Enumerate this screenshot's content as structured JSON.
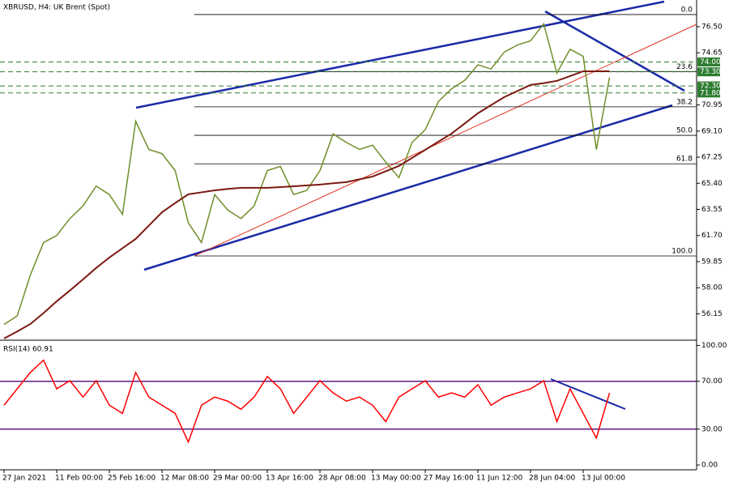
{
  "chart_data": [
    {
      "type": "line",
      "title": "XBRUSD, H4:  UK Brent (Spot)",
      "categories": [
        "27 Jan 2021",
        null,
        null,
        null,
        "11 Feb 00:00",
        null,
        null,
        null,
        "25 Feb 16:00",
        null,
        null,
        null,
        "12 Mar 08:00",
        null,
        null,
        null,
        "29 Mar 00:00",
        null,
        null,
        null,
        "13 Apr 16:00",
        null,
        null,
        null,
        "28 Apr 08:00",
        null,
        null,
        null,
        "13 May 00:00",
        null,
        null,
        null,
        "27 May 16:00",
        null,
        null,
        null,
        "11 Jun 12:00",
        null,
        null,
        null,
        "28 Jun 04:00",
        null,
        null,
        null,
        "13 Jul 00:00",
        null,
        null
      ],
      "series": [
        {
          "color": "#6f8f2a",
          "values": [
            55.4,
            56,
            58.9,
            61.2,
            61.7,
            62.9,
            63.8,
            65.2,
            64.6,
            63.2,
            69.8,
            67.8,
            67.5,
            66.3,
            62.6,
            61.2,
            64.6,
            63.5,
            62.9,
            63.8,
            66.3,
            66.6,
            64.6,
            64.9,
            66.3,
            68.9,
            68.3,
            67.8,
            68.1,
            66.9,
            65.8,
            68.3,
            69.2,
            71.2,
            72.1,
            72.7,
            73.8,
            73.5,
            74.7,
            75.2,
            75.5,
            76.7,
            73.2,
            74.9,
            74.4,
            67.8,
            72.9
          ]
        },
        {
          "color": "#7b1a10",
          "values": [
            54.4,
            54.9,
            55.43,
            56.2,
            57.04,
            57.8,
            58.59,
            59.4,
            60.14,
            60.8,
            61.46,
            62.4,
            63.35,
            64.0,
            64.62,
            64.76,
            64.9,
            65.0,
            65.08,
            65.08,
            65.08,
            65.13,
            65.19,
            65.25,
            65.31,
            65.4,
            65.48,
            65.68,
            65.88,
            66.25,
            66.63,
            67.2,
            67.77,
            68.35,
            68.92,
            69.64,
            70.36,
            70.94,
            71.51,
            71.94,
            72.37,
            72.5,
            72.66,
            73.0,
            73.34,
            73.34,
            73.34
          ]
        }
      ],
      "ylim": [
        54.28,
        78.39
      ],
      "yticks": [
        {
          "value": 76.5,
          "label": "76.50"
        },
        {
          "value": 74.65,
          "label": "74.65"
        },
        {
          "value": 70.95,
          "label": "70.95"
        },
        {
          "value": 69.1,
          "label": "69.10"
        },
        {
          "value": 67.25,
          "label": "67.25"
        },
        {
          "value": 65.4,
          "label": "65.40"
        },
        {
          "value": 63.55,
          "label": "63.55"
        },
        {
          "value": 61.7,
          "label": "61.70"
        },
        {
          "value": 59.85,
          "label": "59.85"
        },
        {
          "value": 58,
          "label": "58.00"
        },
        {
          "value": 56.15,
          "label": "56.15"
        }
      ],
      "levels": [
        {
          "value": 74,
          "label": "74.00"
        },
        {
          "value": 73.3,
          "label": "73.30"
        },
        {
          "value": 72.3,
          "label": "72.30"
        },
        {
          "value": 71.8,
          "label": "71.80"
        }
      ],
      "level_color": "#2e7d32",
      "fib_levels": [
        {
          "label": "0.0",
          "price": 77.36
        },
        {
          "label": "23.6",
          "price": 73.32
        },
        {
          "label": "38.2",
          "price": 70.82
        },
        {
          "label": "50.0",
          "price": 68.8
        },
        {
          "label": "61.8",
          "price": 66.78
        },
        {
          "label": "100.0",
          "price": 60.25
        }
      ]
    },
    {
      "type": "line",
      "title": "RSI(14) 60.91",
      "series": [
        {
          "color": "#ff0000",
          "values": [
            50,
            63.7,
            77.4,
            87.7,
            63.7,
            70.5,
            56.8,
            70.5,
            50,
            43.2,
            77.4,
            56.8,
            50,
            43.2,
            19.2,
            50,
            56.8,
            53.4,
            46.6,
            56.8,
            74,
            63.7,
            43.2,
            56.8,
            70.5,
            60.3,
            53.4,
            56.8,
            50,
            36.3,
            56.8,
            63.7,
            70.5,
            56.8,
            60.3,
            56.8,
            67.1,
            50,
            56.8,
            60.3,
            63.7,
            70.5,
            36.3,
            63.7,
            43.2,
            22.6,
            60.3
          ]
        }
      ],
      "ylim": [
        -4,
        103
      ],
      "yticks": [
        {
          "value": 100,
          "label": "100.00"
        },
        {
          "value": 70,
          "label": "70.00"
        },
        {
          "value": 30,
          "label": "30.00"
        },
        {
          "value": 0,
          "label": "0.00"
        }
      ],
      "levels": [
        70,
        30
      ],
      "level_color": "#5b1a8c"
    }
  ]
}
